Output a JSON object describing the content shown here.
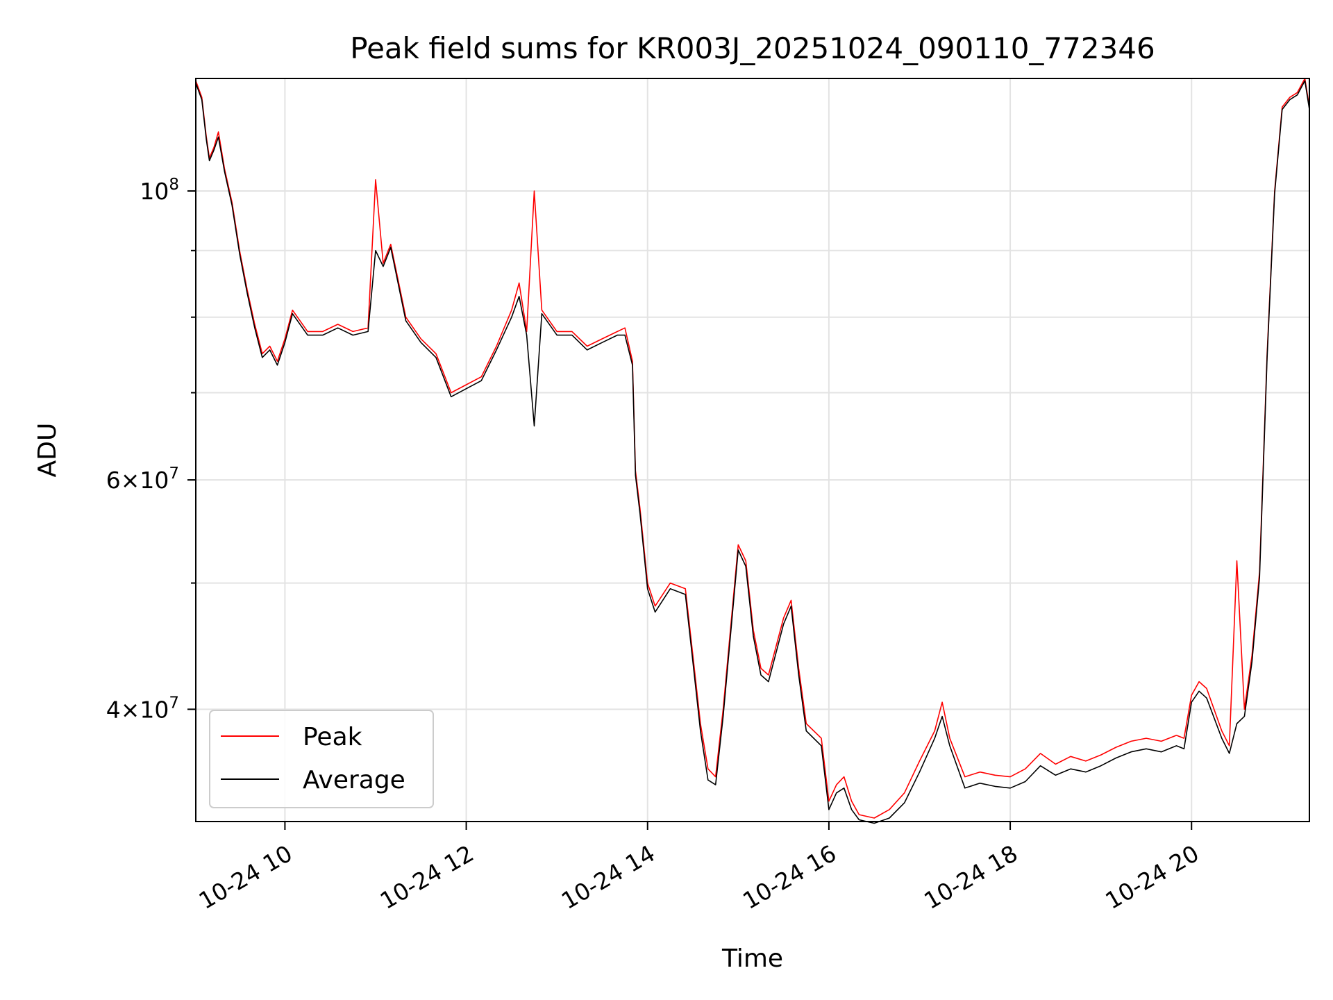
{
  "chart_data": {
    "type": "line",
    "title": "Peak field sums for KR003J_20251024_090110_772346",
    "xlabel": "Time",
    "ylabel": "ADU",
    "y_scale": "log",
    "grid": true,
    "legend_position": "lower-left",
    "xlim": [
      "2025-10-24 09:01",
      "2025-10-24 21:18"
    ],
    "ylim": [
      32800000,
      122000000
    ],
    "x_ticks": [
      {
        "time": "2025-10-24 10:00",
        "label": "10-24 10"
      },
      {
        "time": "2025-10-24 12:00",
        "label": "10-24 12"
      },
      {
        "time": "2025-10-24 14:00",
        "label": "10-24 14"
      },
      {
        "time": "2025-10-24 16:00",
        "label": "10-24 16"
      },
      {
        "time": "2025-10-24 18:00",
        "label": "10-24 18"
      },
      {
        "time": "2025-10-24 20:00",
        "label": "10-24 20"
      }
    ],
    "y_major_ticks": [
      {
        "value": 40000000,
        "mantissa": "4",
        "exponent": "7"
      },
      {
        "value": 60000000,
        "mantissa": "6",
        "exponent": "7"
      },
      {
        "value": 100000000,
        "mantissa": "",
        "exponent": "8"
      }
    ],
    "y_minor_ticks": [
      50000000,
      70000000,
      80000000,
      90000000
    ],
    "series": [
      {
        "name": "Peak",
        "color": "#ff0000",
        "x": [
          "2025-10-24 09:01",
          "2025-10-24 09:05",
          "2025-10-24 09:08",
          "2025-10-24 09:10",
          "2025-10-24 09:13",
          "2025-10-24 09:16",
          "2025-10-24 09:20",
          "2025-10-24 09:25",
          "2025-10-24 09:30",
          "2025-10-24 09:35",
          "2025-10-24 09:40",
          "2025-10-24 09:45",
          "2025-10-24 09:50",
          "2025-10-24 09:55",
          "2025-10-24 10:00",
          "2025-10-24 10:05",
          "2025-10-24 10:15",
          "2025-10-24 10:25",
          "2025-10-24 10:35",
          "2025-10-24 10:45",
          "2025-10-24 10:55",
          "2025-10-24 11:00",
          "2025-10-24 11:05",
          "2025-10-24 11:10",
          "2025-10-24 11:20",
          "2025-10-24 11:30",
          "2025-10-24 11:40",
          "2025-10-24 11:50",
          "2025-10-24 12:00",
          "2025-10-24 12:10",
          "2025-10-24 12:20",
          "2025-10-24 12:30",
          "2025-10-24 12:35",
          "2025-10-24 12:40",
          "2025-10-24 12:45",
          "2025-10-24 12:50",
          "2025-10-24 13:00",
          "2025-10-24 13:10",
          "2025-10-24 13:20",
          "2025-10-24 13:30",
          "2025-10-24 13:40",
          "2025-10-24 13:45",
          "2025-10-24 13:50",
          "2025-10-24 13:52",
          "2025-10-24 13:55",
          "2025-10-24 14:00",
          "2025-10-24 14:05",
          "2025-10-24 14:15",
          "2025-10-24 14:25",
          "2025-10-24 14:30",
          "2025-10-24 14:35",
          "2025-10-24 14:40",
          "2025-10-24 14:45",
          "2025-10-24 14:50",
          "2025-10-24 15:00",
          "2025-10-24 15:05",
          "2025-10-24 15:10",
          "2025-10-24 15:15",
          "2025-10-24 15:20",
          "2025-10-24 15:30",
          "2025-10-24 15:35",
          "2025-10-24 15:40",
          "2025-10-24 15:45",
          "2025-10-24 15:55",
          "2025-10-24 16:00",
          "2025-10-24 16:05",
          "2025-10-24 16:10",
          "2025-10-24 16:15",
          "2025-10-24 16:20",
          "2025-10-24 16:30",
          "2025-10-24 16:40",
          "2025-10-24 16:50",
          "2025-10-24 17:00",
          "2025-10-24 17:10",
          "2025-10-24 17:15",
          "2025-10-24 17:20",
          "2025-10-24 17:30",
          "2025-10-24 17:40",
          "2025-10-24 17:50",
          "2025-10-24 18:00",
          "2025-10-24 18:10",
          "2025-10-24 18:20",
          "2025-10-24 18:30",
          "2025-10-24 18:40",
          "2025-10-24 18:50",
          "2025-10-24 19:00",
          "2025-10-24 19:10",
          "2025-10-24 19:20",
          "2025-10-24 19:30",
          "2025-10-24 19:40",
          "2025-10-24 19:50",
          "2025-10-24 19:55",
          "2025-10-24 20:00",
          "2025-10-24 20:05",
          "2025-10-24 20:10",
          "2025-10-24 20:20",
          "2025-10-24 20:25",
          "2025-10-24 20:30",
          "2025-10-24 20:35",
          "2025-10-24 20:40",
          "2025-10-24 20:45",
          "2025-10-24 20:50",
          "2025-10-24 20:55",
          "2025-10-24 21:00",
          "2025-10-24 21:05",
          "2025-10-24 21:10",
          "2025-10-24 21:15",
          "2025-10-24 21:18"
        ],
        "values": [
          121500000,
          118000000,
          110000000,
          106000000,
          108000000,
          111000000,
          104000000,
          98000000,
          90000000,
          84000000,
          79000000,
          75000000,
          76000000,
          74000000,
          77000000,
          81000000,
          78000000,
          78000000,
          79000000,
          78000000,
          78500000,
          102000000,
          88000000,
          91000000,
          80000000,
          77000000,
          75000000,
          70000000,
          71000000,
          72000000,
          76000000,
          81000000,
          85000000,
          78000000,
          100000000,
          81000000,
          78000000,
          78000000,
          76000000,
          77000000,
          78000000,
          78500000,
          74000000,
          61000000,
          57000000,
          50000000,
          48000000,
          50000000,
          49500000,
          44000000,
          39000000,
          36000000,
          35500000,
          40000000,
          53500000,
          52000000,
          46000000,
          43000000,
          42500000,
          47000000,
          48500000,
          43000000,
          39000000,
          38000000,
          34000000,
          35000000,
          35500000,
          34000000,
          33200000,
          33000000,
          33500000,
          34500000,
          36500000,
          38500000,
          40500000,
          38000000,
          35500000,
          35800000,
          35600000,
          35500000,
          36000000,
          37000000,
          36300000,
          36800000,
          36500000,
          36900000,
          37400000,
          37800000,
          38000000,
          37800000,
          38200000,
          38000000,
          41000000,
          42000000,
          41500000,
          38500000,
          37500000,
          52000000,
          40000000,
          44000000,
          51000000,
          75000000,
          100000000,
          116000000,
          118000000,
          119000000,
          122000000,
          116000000
        ]
      },
      {
        "name": "Average",
        "color": "#000000",
        "x": [
          "2025-10-24 09:01",
          "2025-10-24 09:05",
          "2025-10-24 09:08",
          "2025-10-24 09:10",
          "2025-10-24 09:13",
          "2025-10-24 09:16",
          "2025-10-24 09:20",
          "2025-10-24 09:25",
          "2025-10-24 09:30",
          "2025-10-24 09:35",
          "2025-10-24 09:40",
          "2025-10-24 09:45",
          "2025-10-24 09:50",
          "2025-10-24 09:55",
          "2025-10-24 10:00",
          "2025-10-24 10:05",
          "2025-10-24 10:15",
          "2025-10-24 10:25",
          "2025-10-24 10:35",
          "2025-10-24 10:45",
          "2025-10-24 10:55",
          "2025-10-24 11:00",
          "2025-10-24 11:05",
          "2025-10-24 11:10",
          "2025-10-24 11:20",
          "2025-10-24 11:30",
          "2025-10-24 11:40",
          "2025-10-24 11:50",
          "2025-10-24 12:00",
          "2025-10-24 12:10",
          "2025-10-24 12:20",
          "2025-10-24 12:30",
          "2025-10-24 12:35",
          "2025-10-24 12:40",
          "2025-10-24 12:45",
          "2025-10-24 12:50",
          "2025-10-24 13:00",
          "2025-10-24 13:10",
          "2025-10-24 13:20",
          "2025-10-24 13:30",
          "2025-10-24 13:40",
          "2025-10-24 13:45",
          "2025-10-24 13:50",
          "2025-10-24 13:52",
          "2025-10-24 13:55",
          "2025-10-24 14:00",
          "2025-10-24 14:05",
          "2025-10-24 14:15",
          "2025-10-24 14:25",
          "2025-10-24 14:30",
          "2025-10-24 14:35",
          "2025-10-24 14:40",
          "2025-10-24 14:45",
          "2025-10-24 14:50",
          "2025-10-24 15:00",
          "2025-10-24 15:05",
          "2025-10-24 15:10",
          "2025-10-24 15:15",
          "2025-10-24 15:20",
          "2025-10-24 15:30",
          "2025-10-24 15:35",
          "2025-10-24 15:40",
          "2025-10-24 15:45",
          "2025-10-24 15:55",
          "2025-10-24 16:00",
          "2025-10-24 16:05",
          "2025-10-24 16:10",
          "2025-10-24 16:15",
          "2025-10-24 16:20",
          "2025-10-24 16:30",
          "2025-10-24 16:40",
          "2025-10-24 16:50",
          "2025-10-24 17:00",
          "2025-10-24 17:10",
          "2025-10-24 17:15",
          "2025-10-24 17:20",
          "2025-10-24 17:30",
          "2025-10-24 17:40",
          "2025-10-24 17:50",
          "2025-10-24 18:00",
          "2025-10-24 18:10",
          "2025-10-24 18:20",
          "2025-10-24 18:30",
          "2025-10-24 18:40",
          "2025-10-24 18:50",
          "2025-10-24 19:00",
          "2025-10-24 19:10",
          "2025-10-24 19:20",
          "2025-10-24 19:30",
          "2025-10-24 19:40",
          "2025-10-24 19:50",
          "2025-10-24 19:55",
          "2025-10-24 20:00",
          "2025-10-24 20:05",
          "2025-10-24 20:10",
          "2025-10-24 20:20",
          "2025-10-24 20:25",
          "2025-10-24 20:30",
          "2025-10-24 20:35",
          "2025-10-24 20:40",
          "2025-10-24 20:45",
          "2025-10-24 20:50",
          "2025-10-24 20:55",
          "2025-10-24 21:00",
          "2025-10-24 21:05",
          "2025-10-24 21:10",
          "2025-10-24 21:15",
          "2025-10-24 21:18"
        ],
        "values": [
          121000000,
          117500000,
          109500000,
          105500000,
          107500000,
          110000000,
          103500000,
          97500000,
          89500000,
          83500000,
          78500000,
          74500000,
          75500000,
          73500000,
          76500000,
          80500000,
          77500000,
          77500000,
          78500000,
          77500000,
          78000000,
          90000000,
          87500000,
          90500000,
          79500000,
          76500000,
          74500000,
          69500000,
          70500000,
          71500000,
          75500000,
          80000000,
          83000000,
          77500000,
          66000000,
          80500000,
          77500000,
          77500000,
          75500000,
          76500000,
          77500000,
          77500000,
          73500000,
          60500000,
          56500000,
          49500000,
          47500000,
          49500000,
          49000000,
          43500000,
          38500000,
          35300000,
          35000000,
          39500000,
          53000000,
          51500000,
          45500000,
          42500000,
          42000000,
          46500000,
          48000000,
          42500000,
          38500000,
          37500000,
          33500000,
          34500000,
          34800000,
          33500000,
          32900000,
          32700000,
          33000000,
          33900000,
          35800000,
          38000000,
          39500000,
          37500000,
          34800000,
          35100000,
          34900000,
          34800000,
          35200000,
          36200000,
          35600000,
          36000000,
          35800000,
          36200000,
          36700000,
          37100000,
          37300000,
          37100000,
          37500000,
          37300000,
          40500000,
          41300000,
          40800000,
          38000000,
          37000000,
          39000000,
          39500000,
          43500000,
          50500000,
          74500000,
          99500000,
          115500000,
          117500000,
          118500000,
          121500000,
          115500000
        ]
      }
    ]
  }
}
